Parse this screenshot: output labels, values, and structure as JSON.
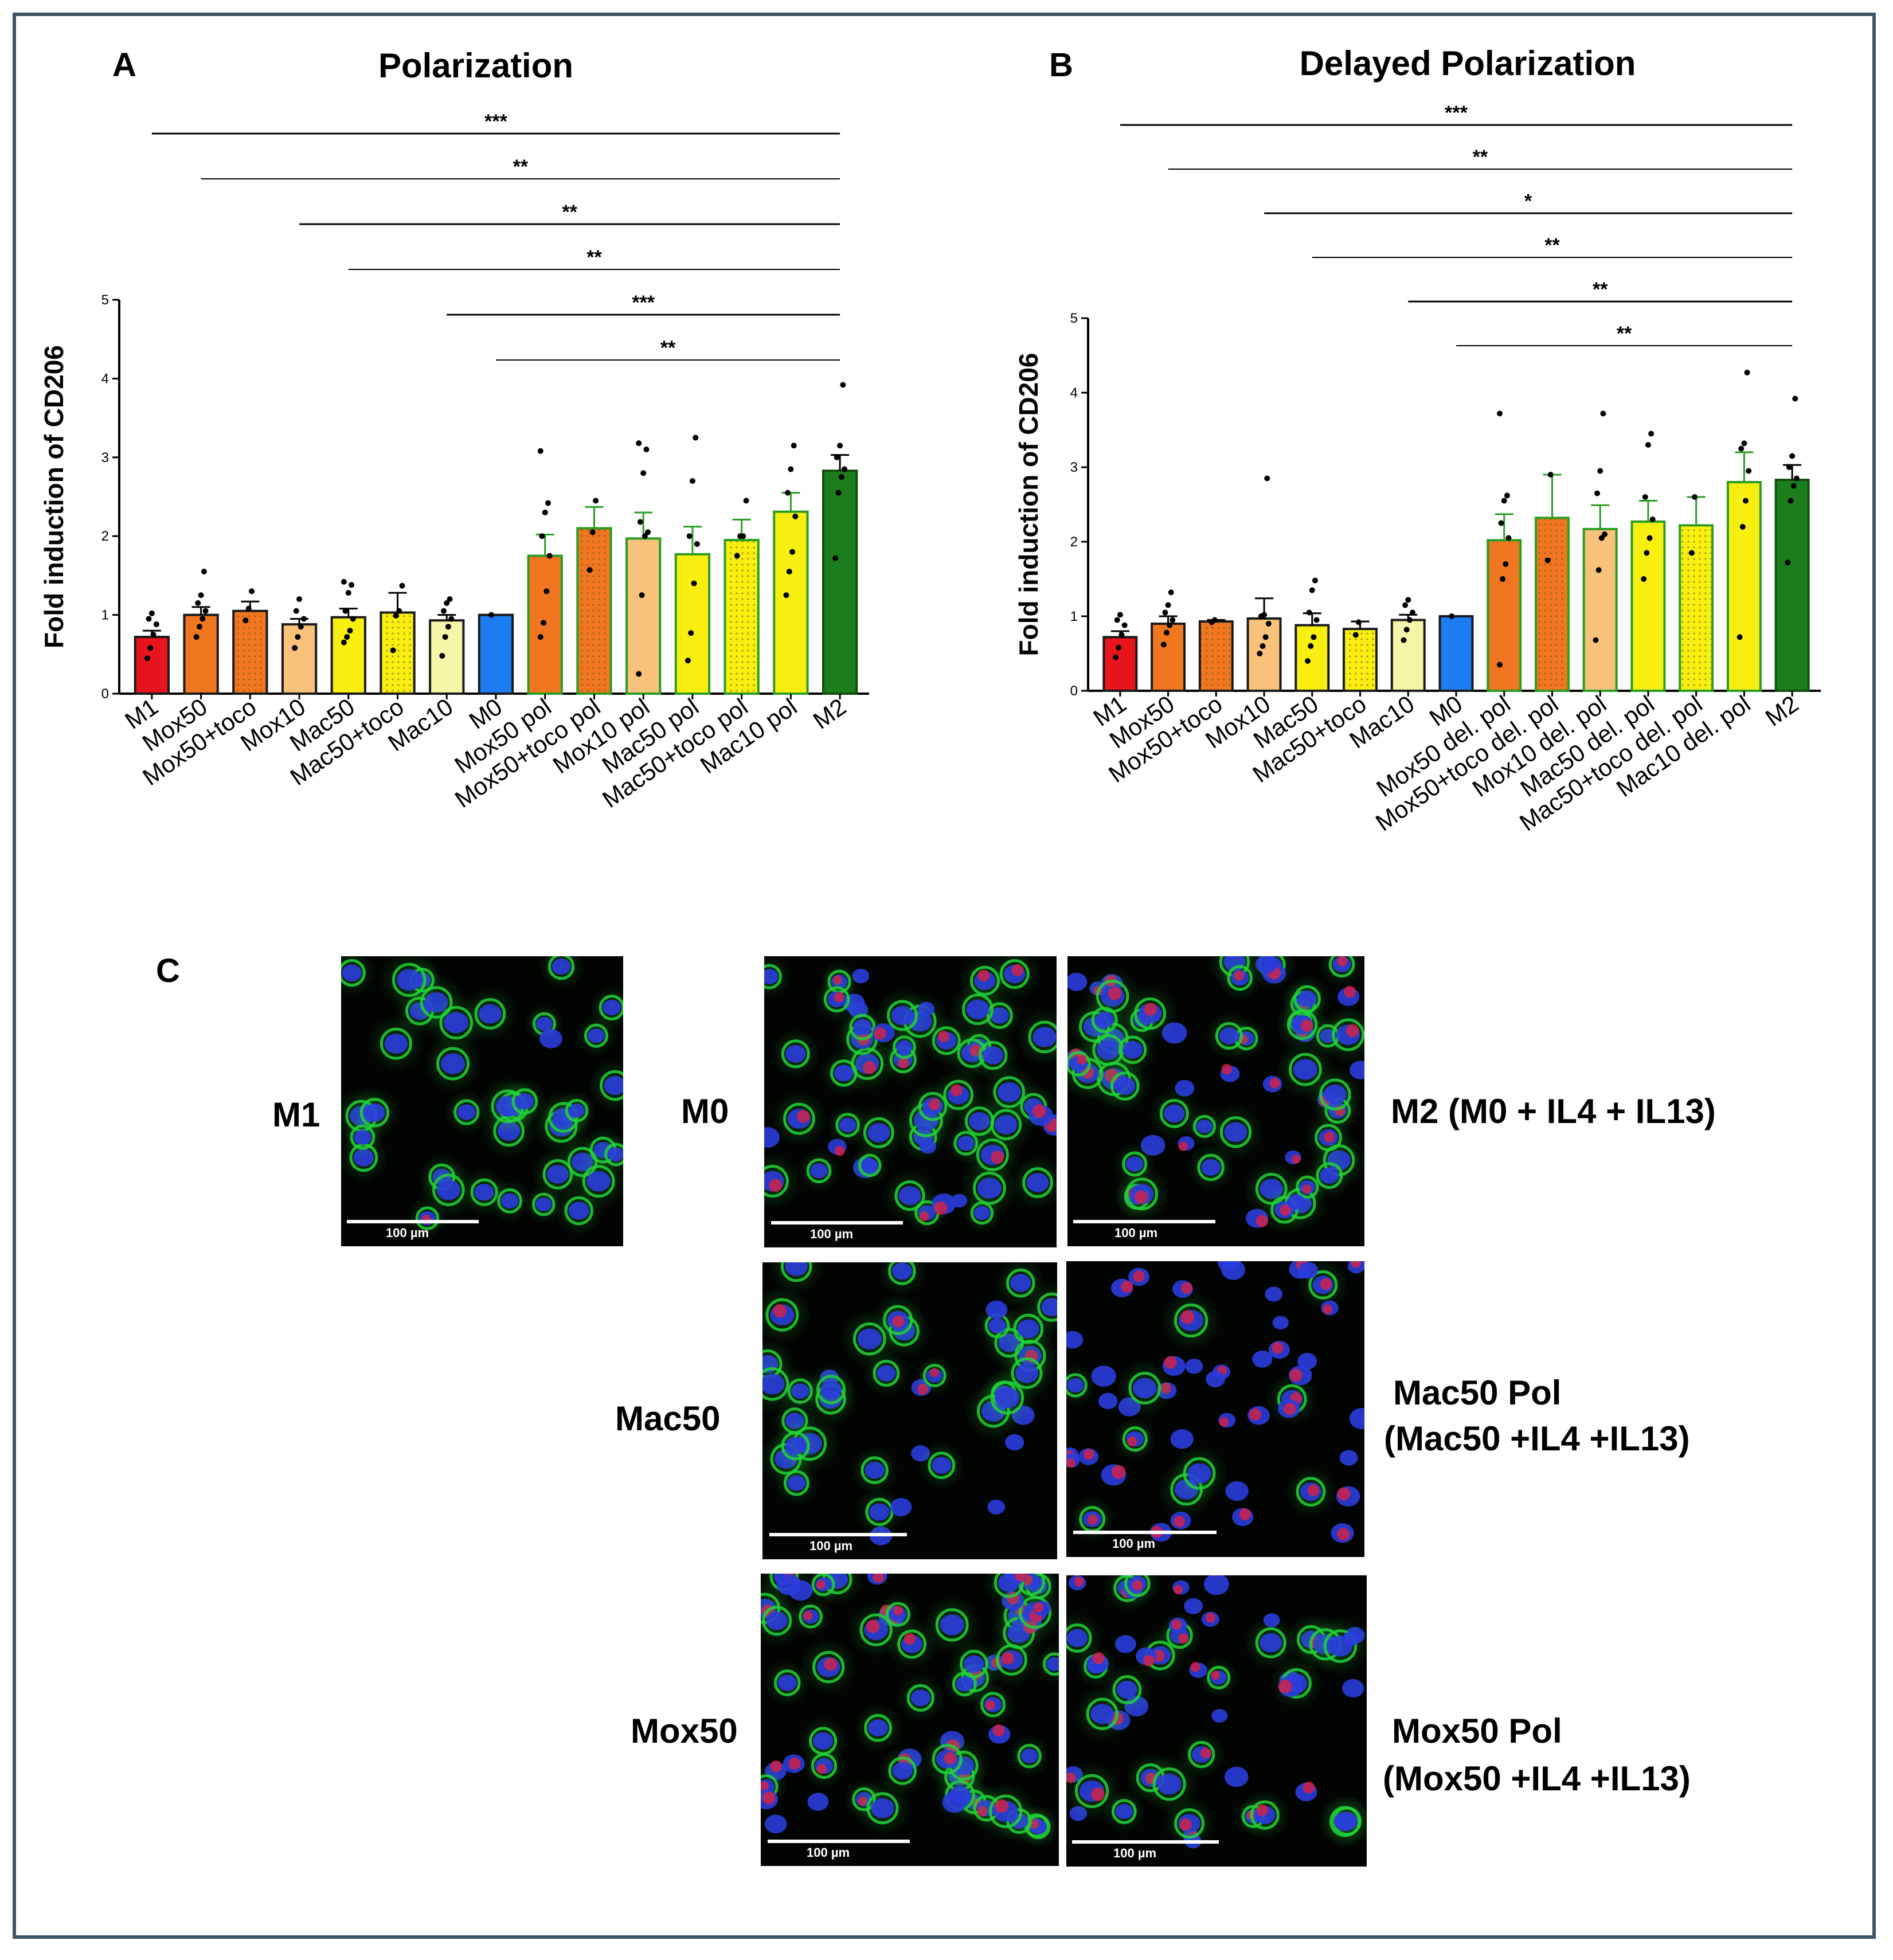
{
  "colors": {
    "frame": "#3d5366",
    "red": "#e8141b",
    "orange": "#f0771f",
    "lightorange": "#f8c27a",
    "yellow": "#f8ef10",
    "paleyellow": "#f4f6a8",
    "blue": "#1d7cf2",
    "green": "#1b7d1b",
    "greenEdge": "#2a9d22",
    "nucleus": "#2a3cdc",
    "cd206": "#22d33a",
    "marker": "#e6203a"
  },
  "panels": {
    "a": {
      "letter": "A",
      "title": "Polarization"
    },
    "b": {
      "letter": "B",
      "title": "Delayed  Polarization"
    },
    "c": {
      "letter": "C"
    }
  },
  "chart_data": [
    {
      "id": "A",
      "type": "bar",
      "title": "Polarization",
      "ylabel": "Fold induction of CD206",
      "ylim": [
        0,
        5
      ],
      "yticks": [
        "0",
        "1",
        "2",
        "3",
        "4",
        "5"
      ],
      "categories": [
        "M1",
        "Mox50",
        "Mox50+toco",
        "Mox10",
        "Mac50",
        "Mac50+toco",
        "Mac10",
        "M0",
        "Mox50 pol",
        "Mox50+toco pol",
        "Mox10 pol",
        "Mac50 pol",
        "Mac50+toco pol",
        "Mac10 pol",
        "M2"
      ],
      "values": [
        0.72,
        1.0,
        1.05,
        0.88,
        0.97,
        1.03,
        0.93,
        1.0,
        1.75,
        2.1,
        1.97,
        1.77,
        1.95,
        2.31,
        2.83
      ],
      "sem": [
        0.08,
        0.1,
        0.12,
        0.07,
        0.11,
        0.25,
        0.07,
        0.0,
        0.27,
        0.27,
        0.33,
        0.35,
        0.26,
        0.24,
        0.2
      ],
      "fills": [
        "red",
        "orange",
        "orange",
        "lightorange",
        "yellow",
        "yellow",
        "paleyellow",
        "blue",
        "orange",
        "orange",
        "lightorange",
        "yellow",
        "yellow",
        "yellow",
        "green"
      ],
      "dotted": [
        false,
        false,
        true,
        false,
        false,
        true,
        false,
        false,
        false,
        true,
        false,
        false,
        true,
        false,
        false
      ],
      "points": [
        [
          0.45,
          0.58,
          0.75,
          0.88,
          0.95,
          1.02
        ],
        [
          0.72,
          0.85,
          0.95,
          1.05,
          1.15,
          1.25,
          1.55
        ],
        [
          0.93,
          1.08,
          1.3
        ],
        [
          0.58,
          0.72,
          0.85,
          0.95,
          1.05,
          1.2
        ],
        [
          0.65,
          0.72,
          0.8,
          0.95,
          1.05,
          1.28,
          1.38,
          1.42
        ],
        [
          0.55,
          0.99,
          1.05,
          1.37
        ],
        [
          0.48,
          0.72,
          0.85,
          0.95,
          1.05,
          1.15,
          1.2
        ],
        [
          1.0
        ],
        [
          0.72,
          0.9,
          1.3,
          1.75,
          2.0,
          2.3,
          2.42,
          3.08
        ],
        [
          1.57,
          2.05,
          2.45
        ],
        [
          0.25,
          1.25,
          2.0,
          2.05,
          2.18,
          2.8,
          3.1,
          3.18
        ],
        [
          0.42,
          0.77,
          1.4,
          1.9,
          2.0,
          2.7,
          3.25
        ],
        [
          1.75,
          2.0,
          2.0,
          2.45
        ],
        [
          1.25,
          1.55,
          1.8,
          2.25,
          2.55,
          2.85,
          3.15
        ],
        [
          1.72,
          2.55,
          2.75,
          2.85,
          3.0,
          3.15,
          3.92
        ]
      ],
      "brackets": [
        {
          "from": 0,
          "to": 14,
          "label": "***"
        },
        {
          "from": 1,
          "to": 14,
          "label": "**"
        },
        {
          "from": 3,
          "to": 14,
          "label": "**"
        },
        {
          "from": 4,
          "to": 14,
          "label": "**"
        },
        {
          "from": 6,
          "to": 14,
          "label": "***"
        },
        {
          "from": 7,
          "to": 14,
          "label": "**"
        }
      ]
    },
    {
      "id": "B",
      "type": "bar",
      "title": "Delayed  Polarization",
      "ylabel": "Fold induction of CD206",
      "ylim": [
        0,
        5
      ],
      "yticks": [
        "0",
        "1",
        "2",
        "3",
        "4",
        "5"
      ],
      "categories": [
        "M1",
        "Mox50",
        "Mox50+toco",
        "Mox10",
        "Mac50",
        "Mac50+toco",
        "Mac10",
        "M0",
        "Mox50 del. pol",
        "Mox50+toco del. pol",
        "Mox10 del. pol",
        "Mac50 del. pol",
        "Mac50+toco del. pol",
        "Mac10 del. pol",
        "M2"
      ],
      "values": [
        0.72,
        0.9,
        0.93,
        0.97,
        0.88,
        0.83,
        0.95,
        1.0,
        2.02,
        2.32,
        2.17,
        2.27,
        2.22,
        2.8,
        2.83
      ],
      "sem": [
        0.08,
        0.1,
        0.02,
        0.27,
        0.16,
        0.1,
        0.07,
        0.0,
        0.35,
        0.58,
        0.32,
        0.28,
        0.38,
        0.4,
        0.2
      ],
      "fills": [
        "red",
        "orange",
        "orange",
        "lightorange",
        "yellow",
        "yellow",
        "paleyellow",
        "blue",
        "orange",
        "orange",
        "lightorange",
        "yellow",
        "yellow",
        "yellow",
        "green"
      ],
      "dotted": [
        false,
        false,
        true,
        false,
        false,
        true,
        false,
        false,
        false,
        true,
        false,
        false,
        true,
        false,
        false
      ],
      "points": [
        [
          0.45,
          0.58,
          0.75,
          0.88,
          0.95,
          1.02
        ],
        [
          0.62,
          0.78,
          0.88,
          0.95,
          1.05,
          1.15,
          1.32
        ],
        [
          0.92,
          0.95
        ],
        [
          0.5,
          0.6,
          0.72,
          0.9,
          1.0,
          1.02,
          2.85
        ],
        [
          0.4,
          0.6,
          0.72,
          0.95,
          1.05,
          1.35,
          1.48
        ],
        [
          0.75,
          0.92
        ],
        [
          0.68,
          0.82,
          0.95,
          1.05,
          1.15,
          1.22
        ],
        [
          1.0
        ],
        [
          0.35,
          1.5,
          1.7,
          2.05,
          2.25,
          2.55,
          2.62,
          3.72
        ],
        [
          1.75,
          2.9
        ],
        [
          0.68,
          1.62,
          2.05,
          2.1,
          2.65,
          2.95,
          3.72
        ],
        [
          1.5,
          1.85,
          2.05,
          2.3,
          2.6,
          3.3,
          3.45
        ],
        [
          1.85,
          2.6
        ],
        [
          0.72,
          2.2,
          2.55,
          2.95,
          3.25,
          3.32,
          4.27
        ],
        [
          1.72,
          2.55,
          2.75,
          2.85,
          3.0,
          3.15,
          3.92
        ]
      ],
      "brackets": [
        {
          "from": 0,
          "to": 14,
          "label": "***"
        },
        {
          "from": 1,
          "to": 14,
          "label": "**"
        },
        {
          "from": 3,
          "to": 14,
          "label": "*"
        },
        {
          "from": 4,
          "to": 14,
          "label": "**"
        },
        {
          "from": 6,
          "to": 14,
          "label": "**"
        },
        {
          "from": 7,
          "to": 14,
          "label": "**"
        }
      ]
    }
  ],
  "images": {
    "m1": {
      "label": "M1",
      "scale": "100 µm",
      "seed": 11,
      "nuclei": 40,
      "red": 0.02,
      "green": 0.95
    },
    "m0": {
      "label": "M0",
      "scale": "100 µm",
      "seed": 23,
      "nuclei": 55,
      "red": 0.3,
      "green": 0.75
    },
    "m2": {
      "label": "M2  (M0 + IL4 + IL13)",
      "scale": "100 µm",
      "seed": 37,
      "nuclei": 60,
      "red": 0.55,
      "green": 0.75
    },
    "mac50": {
      "label": "Mac50",
      "scale": "100 µm",
      "seed": 41,
      "nuclei": 40,
      "red": 0.25,
      "green": 0.8
    },
    "mac50pol": {
      "label_line1": "Mac50 Pol",
      "label_line2": "(Mac50 +IL4 +IL13)",
      "scale": "100 µm",
      "seed": 53,
      "nuclei": 50,
      "red": 0.5,
      "green": 0.2
    },
    "mox50": {
      "label": "Mox50",
      "scale": "100 µm",
      "seed": 67,
      "nuclei": 62,
      "red": 0.55,
      "green": 0.7
    },
    "mox50pol": {
      "label_line1": "Mox50 Pol",
      "label_line2": "(Mox50 +IL4 +IL13)",
      "scale": "100 µm",
      "seed": 79,
      "nuclei": 50,
      "red": 0.55,
      "green": 0.5
    }
  }
}
